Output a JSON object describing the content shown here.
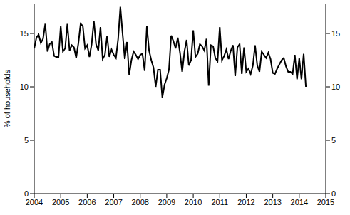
{
  "chart_data": {
    "type": "line",
    "y_label": "% of households",
    "color": "#000000",
    "grid": true,
    "xlim": [
      2004,
      2015
    ],
    "xticks": [
      2004,
      2005,
      2006,
      2007,
      2008,
      2009,
      2010,
      2011,
      2012,
      2013,
      2014,
      2015
    ],
    "ylim": [
      0,
      17.8
    ],
    "yticks": [
      0,
      5,
      10,
      15
    ],
    "x": [
      2004.0,
      2004.083,
      2004.167,
      2004.25,
      2004.333,
      2004.417,
      2004.5,
      2004.583,
      2004.667,
      2004.75,
      2004.833,
      2004.917,
      2005.0,
      2005.083,
      2005.167,
      2005.25,
      2005.333,
      2005.417,
      2005.5,
      2005.583,
      2005.667,
      2005.75,
      2005.833,
      2005.917,
      2006.0,
      2006.083,
      2006.167,
      2006.25,
      2006.333,
      2006.417,
      2006.5,
      2006.583,
      2006.667,
      2006.75,
      2006.833,
      2006.917,
      2007.0,
      2007.083,
      2007.167,
      2007.25,
      2007.333,
      2007.417,
      2007.5,
      2007.583,
      2007.667,
      2007.75,
      2007.833,
      2007.917,
      2008.0,
      2008.083,
      2008.167,
      2008.25,
      2008.333,
      2008.417,
      2008.5,
      2008.583,
      2008.667,
      2008.75,
      2008.833,
      2008.917,
      2009.0,
      2009.083,
      2009.167,
      2009.25,
      2009.333,
      2009.417,
      2009.5,
      2009.583,
      2009.667,
      2009.75,
      2009.833,
      2009.917,
      2010.0,
      2010.083,
      2010.167,
      2010.25,
      2010.333,
      2010.417,
      2010.5,
      2010.583,
      2010.667,
      2010.75,
      2010.833,
      2010.917,
      2011.0,
      2011.083,
      2011.167,
      2011.25,
      2011.333,
      2011.417,
      2011.5,
      2011.583,
      2011.667,
      2011.75,
      2011.833,
      2011.917,
      2012.0,
      2012.083,
      2012.167,
      2012.25,
      2012.333,
      2012.417,
      2012.5,
      2012.583,
      2012.667,
      2012.75,
      2012.833,
      2012.917,
      2013.0,
      2013.083,
      2013.167,
      2013.25,
      2013.333,
      2013.417,
      2013.5,
      2013.583,
      2013.667,
      2013.75,
      2013.833,
      2013.917,
      2014.0,
      2014.083,
      2014.167,
      2014.25
    ],
    "values": [
      13.6,
      14.6,
      14.9,
      14.1,
      14.5,
      15.9,
      13.3,
      14.0,
      14.2,
      12.9,
      12.8,
      12.8,
      15.7,
      13.3,
      13.6,
      15.9,
      13.4,
      13.9,
      13.7,
      12.7,
      14.1,
      15.9,
      15.7,
      13.6,
      13.9,
      12.8,
      14.0,
      16.2,
      14.0,
      13.4,
      15.6,
      12.6,
      13.0,
      14.8,
      12.8,
      13.5,
      13.0,
      12.7,
      14.5,
      17.5,
      15.0,
      12.6,
      14.2,
      11.1,
      12.5,
      13.3,
      13.0,
      12.6,
      13.0,
      13.1,
      11.5,
      15.7,
      13.4,
      12.5,
      11.8,
      10.0,
      11.6,
      11.6,
      9.0,
      10.2,
      10.8,
      11.6,
      14.8,
      14.3,
      13.6,
      14.6,
      13.2,
      11.4,
      13.3,
      14.4,
      12.0,
      12.5,
      15.3,
      12.8,
      13.1,
      14.0,
      13.8,
      13.4,
      14.5,
      10.1,
      13.9,
      13.8,
      12.7,
      12.4,
      15.6,
      12.5,
      12.9,
      13.5,
      12.6,
      13.4,
      13.9,
      11.0,
      13.7,
      14.0,
      11.2,
      13.7,
      11.4,
      11.7,
      11.2,
      12.0,
      13.9,
      12.0,
      11.4,
      13.3,
      13.0,
      12.7,
      13.2,
      12.6,
      11.3,
      11.2,
      11.7,
      12.1,
      12.5,
      12.7,
      11.9,
      11.4,
      11.4,
      11.2,
      13.0,
      10.7,
      12.7,
      10.7,
      13.1,
      10.0
    ]
  }
}
